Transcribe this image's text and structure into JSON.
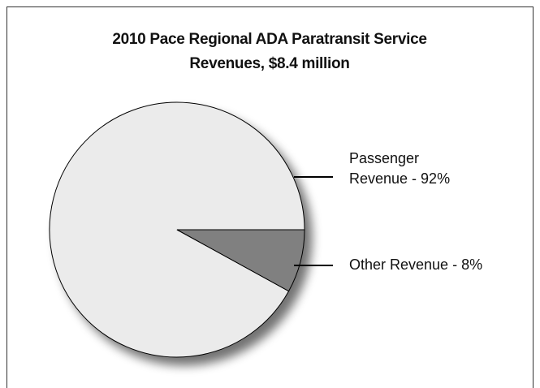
{
  "chart_data": {
    "type": "pie",
    "title": "2010 Pace Regional ADA Paratransit Service Revenues, $8.4 million",
    "categories": [
      "Passenger Revenue - 92%",
      "Other Revenue - 8%"
    ],
    "values": [
      92,
      8
    ],
    "colors": [
      "#ebebeb",
      "#808080"
    ]
  }
}
